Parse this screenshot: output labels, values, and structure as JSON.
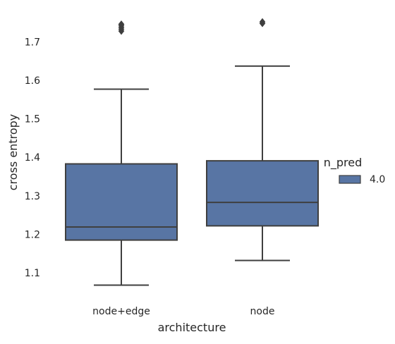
{
  "chart_data": {
    "type": "box",
    "xlabel": "architecture",
    "ylabel": "cross entropy",
    "categories": [
      "node+edge",
      "node"
    ],
    "yticks": [
      "1.1",
      "1.2",
      "1.3",
      "1.4",
      "1.5",
      "1.6",
      "1.7"
    ],
    "ylim": [
      1.03,
      1.77
    ],
    "legend": {
      "title": "n_pred",
      "placement": "right",
      "entries": [
        {
          "label": "4.0",
          "color": "#5875a4"
        }
      ]
    },
    "series": [
      {
        "name": "4.0",
        "color": "#5875a4",
        "boxes": [
          {
            "category": "node+edge",
            "whisker_low": 1.068,
            "q1": 1.185,
            "median": 1.219,
            "q3": 1.383,
            "whisker_high": 1.577,
            "outliers": [
              1.728,
              1.733,
              1.738,
              1.743,
              1.746
            ]
          },
          {
            "category": "node",
            "whisker_low": 1.132,
            "q1": 1.222,
            "median": 1.283,
            "q3": 1.391,
            "whisker_high": 1.637,
            "outliers": [
              1.748,
              1.752
            ]
          }
        ]
      }
    ]
  }
}
